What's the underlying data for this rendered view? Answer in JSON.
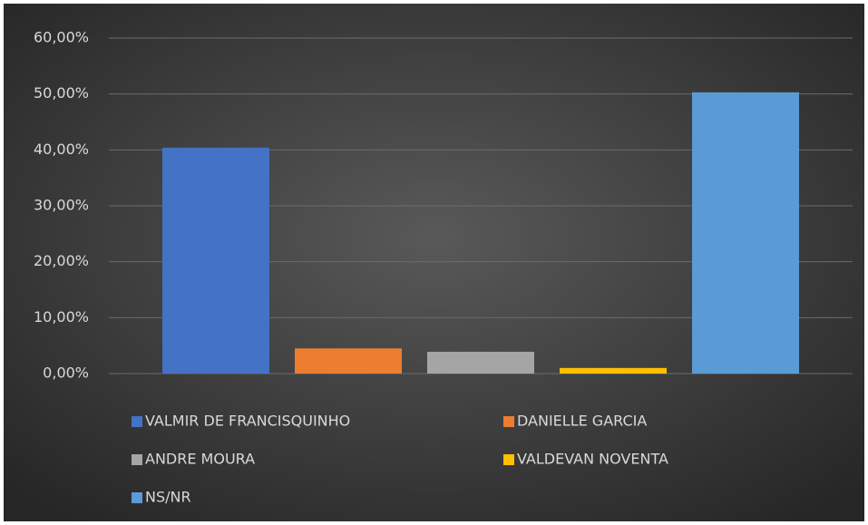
{
  "chart_data": {
    "type": "bar",
    "series": [
      {
        "name": "VALMIR DE FRANCISQUINHO",
        "color": "#4472c4",
        "values": [
          40.4
        ]
      },
      {
        "name": "DANIELLE GARCIA",
        "color": "#ed7d31",
        "values": [
          4.5
        ]
      },
      {
        "name": "ANDRE MOURA",
        "color": "#a5a5a5",
        "values": [
          3.9
        ]
      },
      {
        "name": "VALDEVAN NOVENTA",
        "color": "#ffc000",
        "values": [
          1.0
        ]
      },
      {
        "name": "NS/NR",
        "color": "#5b9bd5",
        "values": [
          50.3
        ]
      }
    ],
    "ylim": [
      0,
      60
    ],
    "yticks": [
      {
        "value": 0,
        "label": "0,00%"
      },
      {
        "value": 10,
        "label": "10,00%"
      },
      {
        "value": 20,
        "label": "20,00%"
      },
      {
        "value": 30,
        "label": "30,00%"
      },
      {
        "value": 40,
        "label": "40,00%"
      },
      {
        "value": 50,
        "label": "50,00%"
      },
      {
        "value": 60,
        "label": "60,00%"
      }
    ],
    "grid": true,
    "legend": "bottom"
  }
}
